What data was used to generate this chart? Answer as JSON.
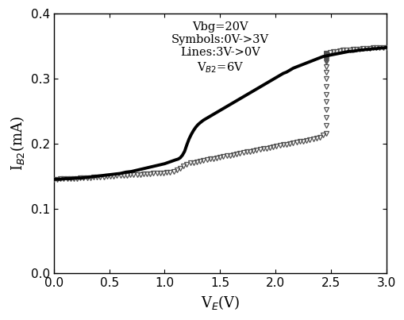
{
  "title": "",
  "xlabel": "V$_{E}$(V)",
  "ylabel": "I$_{B2}$(mA)",
  "xlim": [
    0.0,
    3.0
  ],
  "ylim": [
    0.0,
    0.4
  ],
  "xticks": [
    0.0,
    0.5,
    1.0,
    1.5,
    2.0,
    2.5,
    3.0
  ],
  "yticks": [
    0.0,
    0.1,
    0.2,
    0.3,
    0.4
  ],
  "line_color": "#000000",
  "symbol_color": "#505050",
  "figsize": [
    5.1,
    4.03
  ],
  "dpi": 100,
  "annotation_lines": [
    "Vbg=20V",
    "Symbols:0V->3V",
    "Lines:3V->0V",
    "V$_{B2}$=6V"
  ],
  "symbols_x": [
    0.0,
    0.03,
    0.06,
    0.09,
    0.12,
    0.15,
    0.18,
    0.21,
    0.24,
    0.27,
    0.3,
    0.33,
    0.36,
    0.39,
    0.42,
    0.45,
    0.48,
    0.51,
    0.54,
    0.57,
    0.6,
    0.63,
    0.66,
    0.69,
    0.72,
    0.75,
    0.78,
    0.81,
    0.84,
    0.87,
    0.9,
    0.93,
    0.96,
    0.99,
    1.02,
    1.05,
    1.08,
    1.11,
    1.14,
    1.17,
    1.2,
    1.23,
    1.26,
    1.29,
    1.32,
    1.35,
    1.38,
    1.41,
    1.44,
    1.47,
    1.5,
    1.53,
    1.56,
    1.59,
    1.62,
    1.65,
    1.68,
    1.71,
    1.74,
    1.77,
    1.8,
    1.83,
    1.86,
    1.89,
    1.92,
    1.95,
    1.98,
    2.01,
    2.04,
    2.07,
    2.1,
    2.13,
    2.16,
    2.19,
    2.22,
    2.25,
    2.28,
    2.31,
    2.34,
    2.37,
    2.4,
    2.43,
    2.46,
    2.46,
    2.46,
    2.46,
    2.46,
    2.46,
    2.46,
    2.46,
    2.46,
    2.46,
    2.46,
    2.46,
    2.46,
    2.46,
    2.46,
    2.46,
    2.46,
    2.46,
    2.46,
    2.46,
    2.46,
    2.49,
    2.52,
    2.55,
    2.58,
    2.61,
    2.64,
    2.67,
    2.7,
    2.73,
    2.76,
    2.79,
    2.82,
    2.85,
    2.88,
    2.91,
    2.94,
    2.97,
    3.0
  ],
  "symbols_y": [
    0.145,
    0.1452,
    0.1454,
    0.1456,
    0.1458,
    0.146,
    0.1462,
    0.1465,
    0.1468,
    0.147,
    0.1473,
    0.1476,
    0.148,
    0.1483,
    0.1487,
    0.149,
    0.1493,
    0.1496,
    0.15,
    0.1503,
    0.1507,
    0.151,
    0.1513,
    0.1516,
    0.152,
    0.1523,
    0.1527,
    0.153,
    0.1534,
    0.1538,
    0.154,
    0.1543,
    0.1547,
    0.155,
    0.1553,
    0.156,
    0.157,
    0.159,
    0.162,
    0.165,
    0.168,
    0.17,
    0.171,
    0.172,
    0.173,
    0.174,
    0.175,
    0.176,
    0.177,
    0.178,
    0.179,
    0.18,
    0.181,
    0.182,
    0.183,
    0.184,
    0.185,
    0.186,
    0.187,
    0.188,
    0.189,
    0.19,
    0.191,
    0.192,
    0.193,
    0.194,
    0.195,
    0.196,
    0.197,
    0.198,
    0.199,
    0.2,
    0.201,
    0.202,
    0.203,
    0.204,
    0.205,
    0.206,
    0.207,
    0.208,
    0.21,
    0.213,
    0.216,
    0.228,
    0.24,
    0.252,
    0.264,
    0.276,
    0.288,
    0.3,
    0.31,
    0.318,
    0.325,
    0.328,
    0.33,
    0.332,
    0.333,
    0.334,
    0.335,
    0.336,
    0.337,
    0.338,
    0.339,
    0.34,
    0.341,
    0.342,
    0.343,
    0.344,
    0.344,
    0.344,
    0.345,
    0.345,
    0.345,
    0.346,
    0.346,
    0.346,
    0.347,
    0.347,
    0.347,
    0.348,
    0.348
  ],
  "line_x": [
    3.0,
    2.97,
    2.94,
    2.91,
    2.88,
    2.85,
    2.82,
    2.79,
    2.76,
    2.73,
    2.7,
    2.67,
    2.64,
    2.61,
    2.58,
    2.55,
    2.52,
    2.49,
    2.46,
    2.43,
    2.4,
    2.37,
    2.34,
    2.31,
    2.28,
    2.25,
    2.22,
    2.19,
    2.16,
    2.13,
    2.1,
    2.07,
    2.04,
    2.01,
    1.98,
    1.95,
    1.92,
    1.89,
    1.86,
    1.83,
    1.8,
    1.77,
    1.74,
    1.71,
    1.68,
    1.65,
    1.62,
    1.59,
    1.56,
    1.53,
    1.5,
    1.47,
    1.44,
    1.41,
    1.38,
    1.35,
    1.32,
    1.3,
    1.28,
    1.26,
    1.24,
    1.22,
    1.2,
    1.18,
    1.16,
    1.14,
    1.12,
    1.1,
    1.05,
    1.0,
    0.95,
    0.9,
    0.85,
    0.8,
    0.75,
    0.7,
    0.65,
    0.6,
    0.55,
    0.5,
    0.45,
    0.4,
    0.35,
    0.3,
    0.25,
    0.2,
    0.15,
    0.1,
    0.05,
    0.0
  ],
  "line_y": [
    0.348,
    0.347,
    0.347,
    0.346,
    0.346,
    0.345,
    0.345,
    0.344,
    0.344,
    0.343,
    0.342,
    0.342,
    0.341,
    0.34,
    0.339,
    0.338,
    0.337,
    0.336,
    0.335,
    0.334,
    0.332,
    0.33,
    0.328,
    0.326,
    0.324,
    0.322,
    0.32,
    0.318,
    0.316,
    0.313,
    0.31,
    0.308,
    0.305,
    0.302,
    0.299,
    0.296,
    0.293,
    0.29,
    0.287,
    0.284,
    0.281,
    0.278,
    0.275,
    0.272,
    0.269,
    0.266,
    0.263,
    0.26,
    0.257,
    0.254,
    0.251,
    0.248,
    0.245,
    0.242,
    0.239,
    0.236,
    0.232,
    0.229,
    0.225,
    0.22,
    0.214,
    0.207,
    0.198,
    0.188,
    0.182,
    0.178,
    0.176,
    0.175,
    0.172,
    0.169,
    0.167,
    0.165,
    0.163,
    0.161,
    0.159,
    0.157,
    0.156,
    0.154,
    0.153,
    0.152,
    0.151,
    0.15,
    0.149,
    0.148,
    0.147,
    0.147,
    0.146,
    0.146,
    0.145,
    0.145
  ]
}
